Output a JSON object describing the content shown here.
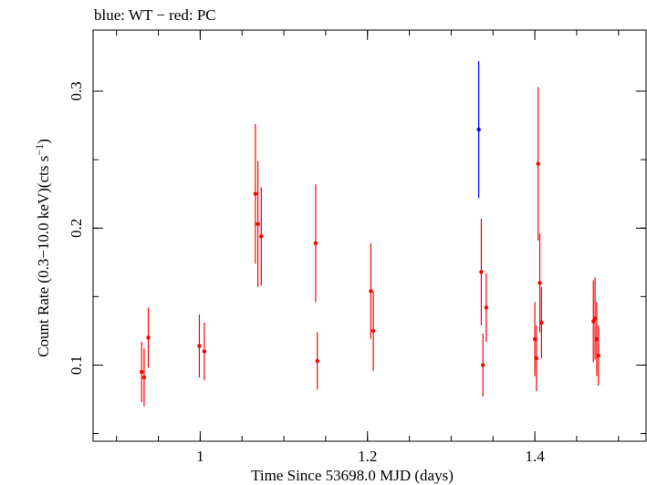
{
  "chart_data": {
    "type": "scatter",
    "title": "blue: WT − red: PC",
    "xlabel": "Time Since 53698.0 MJD (days)",
    "ylabel_main": "Count Rate (0.3−10.0 keV)(cts s",
    "ylabel_sup": "−1",
    "ylabel_close": ")",
    "xlim": [
      0.872,
      1.533
    ],
    "ylim": [
      0.0444,
      0.3446
    ],
    "xticks": [
      1,
      1.2,
      1.4
    ],
    "xtick_labels": [
      "1",
      "1.2",
      "1.4"
    ],
    "yticks": [
      0.1,
      0.2,
      0.3
    ],
    "ytick_labels": [
      "0.1",
      "0.2",
      "0.3"
    ],
    "xminor_step": 0.05,
    "yminor_step": 0.05,
    "grid": false,
    "series": [
      {
        "color": "#ff0000",
        "points": [
          {
            "x": 0.93,
            "y": 0.095,
            "err": 0.022
          },
          {
            "x": 0.933,
            "y": 0.091,
            "err": 0.021
          },
          {
            "x": 0.938,
            "y": 0.12,
            "err": 0.022
          },
          {
            "x": 0.999,
            "y": 0.114,
            "err": 0.023
          },
          {
            "x": 1.005,
            "y": 0.11,
            "err": 0.021
          },
          {
            "x": 1.066,
            "y": 0.225,
            "err": 0.051
          },
          {
            "x": 1.069,
            "y": 0.203,
            "err": 0.046
          },
          {
            "x": 1.073,
            "y": 0.194,
            "err": 0.036
          },
          {
            "x": 1.138,
            "y": 0.189,
            "err": 0.043
          },
          {
            "x": 1.14,
            "y": 0.103,
            "err": 0.021
          },
          {
            "x": 1.204,
            "y": 0.154,
            "err": 0.035
          },
          {
            "x": 1.207,
            "y": 0.125,
            "err": 0.029
          },
          {
            "x": 1.336,
            "y": 0.168,
            "err": 0.039
          },
          {
            "x": 1.338,
            "y": 0.1,
            "err": 0.023
          },
          {
            "x": 1.342,
            "y": 0.142,
            "err": 0.025
          },
          {
            "x": 1.4,
            "y": 0.119,
            "err": 0.027
          },
          {
            "x": 1.402,
            "y": 0.105,
            "err": 0.024
          },
          {
            "x": 1.404,
            "y": 0.247,
            "err": 0.056
          },
          {
            "x": 1.406,
            "y": 0.16,
            "err": 0.036
          },
          {
            "x": 1.408,
            "y": 0.131,
            "err": 0.026
          },
          {
            "x": 1.47,
            "y": 0.132,
            "err": 0.03
          },
          {
            "x": 1.472,
            "y": 0.134,
            "err": 0.03
          },
          {
            "x": 1.474,
            "y": 0.119,
            "err": 0.027
          },
          {
            "x": 1.476,
            "y": 0.107,
            "err": 0.022
          }
        ]
      },
      {
        "color": "#0000ff",
        "points": [
          {
            "x": 1.333,
            "y": 0.272,
            "err": 0.05
          }
        ]
      }
    ]
  }
}
